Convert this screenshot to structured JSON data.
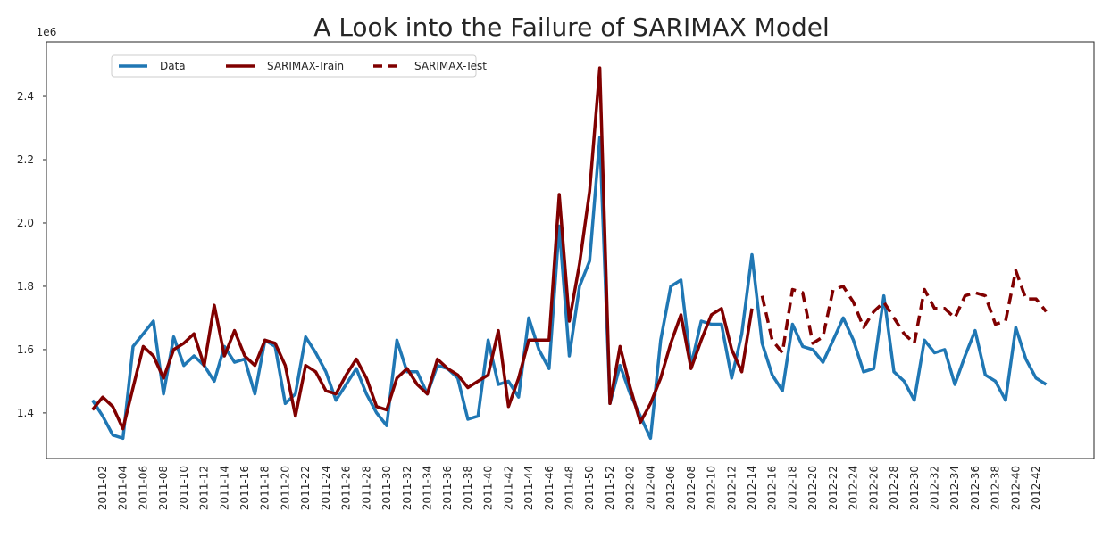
{
  "chart_data": {
    "type": "line",
    "title": "A Look into the Failure of SARIMAX Model",
    "y_offset_label": "1e6",
    "categories": [
      null,
      "2011-02",
      null,
      "2011-04",
      null,
      "2011-06",
      null,
      "2011-08",
      null,
      "2011-10",
      null,
      "2011-12",
      null,
      "2011-14",
      null,
      "2011-16",
      null,
      "2011-18",
      null,
      "2011-20",
      null,
      "2011-22",
      null,
      "2011-24",
      null,
      "2011-26",
      null,
      "2011-28",
      null,
      "2011-30",
      null,
      "2011-32",
      null,
      "2011-34",
      null,
      "2011-36",
      null,
      "2011-38",
      null,
      "2011-40",
      null,
      "2011-42",
      null,
      "2011-44",
      null,
      "2011-46",
      null,
      "2011-48",
      null,
      "2011-50",
      null,
      "2011-52",
      null,
      "2012-02",
      null,
      "2012-04",
      null,
      "2012-06",
      null,
      "2012-08",
      null,
      "2012-10",
      null,
      "2012-12",
      null,
      "2012-14",
      null,
      "2012-16",
      null,
      "2012-18",
      null,
      "2012-20",
      null,
      "2012-22",
      null,
      "2012-24",
      null,
      "2012-26",
      null,
      "2012-28",
      null,
      "2012-30",
      null,
      "2012-32",
      null,
      "2012-34",
      null,
      "2012-36",
      null,
      "2012-38",
      null,
      "2012-40",
      null,
      "2012-42",
      null
    ],
    "series": [
      {
        "name": "Data",
        "color": "#1f77b4",
        "linestyle": "solid",
        "values": [
          1.44,
          1.39,
          1.33,
          1.32,
          1.61,
          1.65,
          1.69,
          1.46,
          1.64,
          1.55,
          1.58,
          1.55,
          1.5,
          1.61,
          1.56,
          1.57,
          1.46,
          1.63,
          1.61,
          1.43,
          1.46,
          1.64,
          1.59,
          1.53,
          1.44,
          1.49,
          1.54,
          1.46,
          1.4,
          1.36,
          1.63,
          1.53,
          1.53,
          1.46,
          1.55,
          1.54,
          1.51,
          1.38,
          1.39,
          1.63,
          1.49,
          1.5,
          1.45,
          1.7,
          1.6,
          1.54,
          1.99,
          1.58,
          1.8,
          1.88,
          2.27,
          1.43,
          1.55,
          1.46,
          1.39,
          1.32,
          1.63,
          1.8,
          1.82,
          1.55,
          1.69,
          1.68,
          1.68,
          1.51,
          1.65,
          1.9,
          1.62,
          1.52,
          1.47,
          1.68,
          1.61,
          1.6,
          1.56,
          1.63,
          1.7,
          1.63,
          1.53,
          1.54,
          1.77,
          1.53,
          1.5,
          1.44,
          1.63,
          1.59,
          1.6,
          1.49,
          1.58,
          1.66,
          1.52,
          1.5,
          1.44,
          1.67,
          1.57,
          1.51,
          1.49
        ]
      },
      {
        "name": "SARIMAX-Train",
        "color": "#800000",
        "linestyle": "solid",
        "values": [
          1.41,
          1.45,
          1.42,
          1.35,
          1.48,
          1.61,
          1.58,
          1.51,
          1.6,
          1.62,
          1.65,
          1.55,
          1.74,
          1.58,
          1.66,
          1.58,
          1.55,
          1.63,
          1.62,
          1.55,
          1.39,
          1.55,
          1.53,
          1.47,
          1.46,
          1.52,
          1.57,
          1.51,
          1.42,
          1.41,
          1.51,
          1.54,
          1.49,
          1.46,
          1.57,
          1.54,
          1.52,
          1.48,
          1.5,
          1.52,
          1.66,
          1.42,
          1.51,
          1.63,
          1.63,
          1.63,
          2.09,
          1.69,
          1.87,
          2.1,
          2.49,
          1.43,
          1.61,
          1.48,
          1.37,
          1.43,
          1.51,
          1.62,
          1.71,
          1.54,
          1.63,
          1.71,
          1.73,
          1.6,
          1.53,
          1.73,
          null,
          null,
          null,
          null,
          null,
          null,
          null,
          null,
          null,
          null,
          null,
          null,
          null,
          null,
          null,
          null,
          null,
          null,
          null,
          null,
          null,
          null,
          null,
          null,
          null,
          null,
          null,
          null,
          null
        ]
      },
      {
        "name": "SARIMAX-Test",
        "color": "#800000",
        "linestyle": "dashed",
        "values": [
          null,
          null,
          null,
          null,
          null,
          null,
          null,
          null,
          null,
          null,
          null,
          null,
          null,
          null,
          null,
          null,
          null,
          null,
          null,
          null,
          null,
          null,
          null,
          null,
          null,
          null,
          null,
          null,
          null,
          null,
          null,
          null,
          null,
          null,
          null,
          null,
          null,
          null,
          null,
          null,
          null,
          null,
          null,
          null,
          null,
          null,
          null,
          null,
          null,
          null,
          null,
          null,
          null,
          null,
          null,
          null,
          null,
          null,
          null,
          null,
          null,
          null,
          null,
          null,
          null,
          null,
          1.77,
          1.63,
          1.59,
          1.79,
          1.78,
          1.62,
          1.64,
          1.79,
          1.8,
          1.75,
          1.67,
          1.72,
          1.75,
          1.7,
          1.65,
          1.62,
          1.79,
          1.73,
          1.73,
          1.7,
          1.77,
          1.78,
          1.77,
          1.68,
          1.69,
          1.85,
          1.76,
          1.76,
          1.72
        ]
      }
    ],
    "ylim": [
      1.256,
      2.572
    ],
    "yticks": [
      1.4,
      1.6,
      1.8,
      {
        "value": 2,
        "label": "2.0"
      },
      2.2,
      2.4
    ],
    "grid": false,
    "legend": "upper left"
  }
}
